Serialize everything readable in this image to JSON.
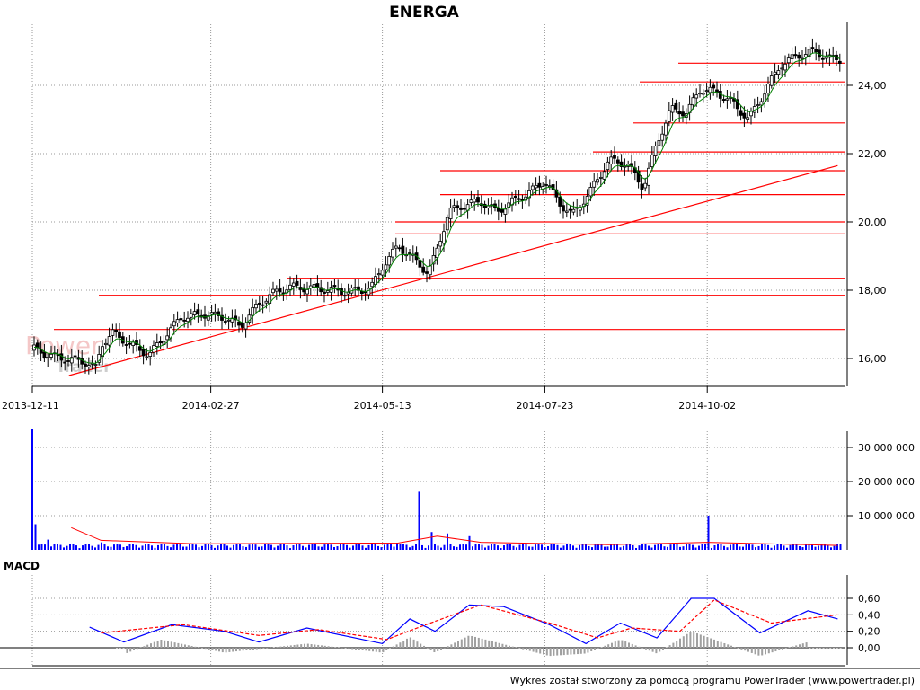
{
  "title": "ENERGA",
  "watermark": {
    "line1": "Power",
    "line2": "Trader"
  },
  "footer": "Wykres został stworzony za pomocą programu PowerTrader (www.powertrader.pl)",
  "colors": {
    "background": "#ffffff",
    "up_candle": "#ffffff",
    "down_candle": "#000000",
    "support_lines": "#ff0000",
    "moving_average": "#008000",
    "volume_bars": "#0000ff",
    "macd_line": "#0000ff",
    "signal_line": "#ff0000",
    "histogram": "#a0a0a0"
  },
  "chart_data": [
    {
      "type": "candlestick",
      "title": "ENERGA",
      "x_tick_labels": [
        "2013-12-11",
        "2014-02-27",
        "2014-05-13",
        "2014-07-23",
        "2014-10-02"
      ],
      "y_tick_labels": [
        "16,00",
        "18,00",
        "20,00",
        "22,00",
        "24,00"
      ],
      "y_ticks": [
        16,
        18,
        20,
        22,
        24
      ],
      "ylim": [
        15.2,
        25.4
      ],
      "grid": true,
      "close_series": [
        [
          "2013-12-11",
          16.3
        ],
        [
          "2013-12-20",
          16.05
        ],
        [
          "2014-01-03",
          15.9
        ],
        [
          "2014-01-08",
          15.7
        ],
        [
          "2014-01-10",
          16.4
        ],
        [
          "2014-01-15",
          16.75
        ],
        [
          "2014-01-22",
          16.45
        ],
        [
          "2014-01-31",
          16.1
        ],
        [
          "2014-02-05",
          16.5
        ],
        [
          "2014-02-14",
          17.2
        ],
        [
          "2014-02-24",
          17.3
        ],
        [
          "2014-03-05",
          17.2
        ],
        [
          "2014-03-12",
          16.95
        ],
        [
          "2014-03-20",
          17.6
        ],
        [
          "2014-03-26",
          17.9
        ],
        [
          "2014-04-02",
          18.1
        ],
        [
          "2014-04-14",
          18.05
        ],
        [
          "2014-04-28",
          17.95
        ],
        [
          "2014-05-08",
          18.05
        ],
        [
          "2014-05-13",
          18.7
        ],
        [
          "2014-05-20",
          19.3
        ],
        [
          "2014-05-27",
          18.9
        ],
        [
          "2014-06-02",
          18.5
        ],
        [
          "2014-06-05",
          19.0
        ],
        [
          "2014-06-11",
          20.3
        ],
        [
          "2014-06-18",
          20.5
        ],
        [
          "2014-06-25",
          20.6
        ],
        [
          "2014-07-02",
          20.3
        ],
        [
          "2014-07-09",
          20.6
        ],
        [
          "2014-07-16",
          20.85
        ],
        [
          "2014-07-23",
          21.2
        ],
        [
          "2014-07-30",
          20.5
        ],
        [
          "2014-08-04",
          20.2
        ],
        [
          "2014-08-11",
          20.8
        ],
        [
          "2014-08-20",
          21.8
        ],
        [
          "2014-08-28",
          21.7
        ],
        [
          "2014-09-04",
          21.0
        ],
        [
          "2014-09-10",
          22.3
        ],
        [
          "2014-09-16",
          23.3
        ],
        [
          "2014-09-23",
          23.2
        ],
        [
          "2014-09-29",
          23.9
        ],
        [
          "2014-10-06",
          23.8
        ],
        [
          "2014-10-13",
          23.5
        ],
        [
          "2014-10-20",
          23.0
        ],
        [
          "2014-10-27",
          23.8
        ],
        [
          "2014-11-03",
          24.6
        ],
        [
          "2014-11-10",
          24.85
        ],
        [
          "2014-11-17",
          25.0
        ],
        [
          "2014-11-26",
          24.75
        ]
      ],
      "support_resistance_levels": [
        16.85,
        17.85,
        18.35,
        19.65,
        20.0,
        20.8,
        21.5,
        22.05,
        22.9,
        24.1,
        24.65
      ],
      "trend_line": {
        "from": [
          "2013-12-27",
          15.5
        ],
        "to": [
          "2014-11-28",
          21.65
        ]
      }
    },
    {
      "type": "bar",
      "title": "Volume",
      "y_tick_labels": [
        "10 000 000",
        "20 000 000",
        "30 000 000"
      ],
      "y_ticks": [
        10000000,
        20000000,
        30000000
      ],
      "ylim": [
        0,
        38000000
      ],
      "values": [
        [
          "2013-12-11",
          35500000
        ],
        [
          "2013-12-12",
          7500000
        ],
        [
          "2013-12-18",
          3000000
        ],
        [
          "2014-01-10",
          2200000
        ],
        [
          "2014-02-20",
          1500000
        ],
        [
          "2014-05-20",
          2000000
        ],
        [
          "2014-05-29",
          17000000
        ],
        [
          "2014-06-04",
          5200000
        ],
        [
          "2014-06-10",
          4800000
        ],
        [
          "2014-06-20",
          4000000
        ],
        [
          "2014-09-19",
          1800000
        ],
        [
          "2014-10-02",
          10000000
        ],
        [
          "2014-11-20",
          1200000
        ]
      ],
      "average_line": [
        [
          "2013-12-28",
          6500000
        ],
        [
          "2014-01-10",
          2800000
        ],
        [
          "2014-02-20",
          1800000
        ],
        [
          "2014-05-20",
          2000000
        ],
        [
          "2014-06-06",
          4000000
        ],
        [
          "2014-06-25",
          2200000
        ],
        [
          "2014-08-20",
          1500000
        ],
        [
          "2014-10-02",
          2200000
        ],
        [
          "2014-11-28",
          1300000
        ]
      ]
    },
    {
      "type": "line",
      "title": "MACD",
      "y_tick_labels": [
        "0,00",
        "0,20",
        "0,40",
        "0,60"
      ],
      "y_ticks": [
        0,
        0.2,
        0.4,
        0.6
      ],
      "ylim": [
        -0.1,
        0.7
      ],
      "series": [
        {
          "name": "macd",
          "values": [
            [
              "2014-01-05",
              0.25
            ],
            [
              "2014-01-20",
              0.07
            ],
            [
              "2014-02-10",
              0.28
            ],
            [
              "2014-03-05",
              0.2
            ],
            [
              "2014-03-20",
              0.07
            ],
            [
              "2014-04-10",
              0.24
            ],
            [
              "2014-05-13",
              0.05
            ],
            [
              "2014-05-25",
              0.35
            ],
            [
              "2014-06-05",
              0.2
            ],
            [
              "2014-06-20",
              0.52
            ],
            [
              "2014-07-05",
              0.5
            ],
            [
              "2014-07-25",
              0.28
            ],
            [
              "2014-08-10",
              0.05
            ],
            [
              "2014-08-25",
              0.3
            ],
            [
              "2014-09-10",
              0.12
            ],
            [
              "2014-09-25",
              0.6
            ],
            [
              "2014-10-05",
              0.6
            ],
            [
              "2014-10-25",
              0.18
            ],
            [
              "2014-11-15",
              0.45
            ],
            [
              "2014-11-28",
              0.35
            ]
          ]
        },
        {
          "name": "signal",
          "values": [
            [
              "2014-01-10",
              0.18
            ],
            [
              "2014-02-15",
              0.28
            ],
            [
              "2014-03-20",
              0.15
            ],
            [
              "2014-04-15",
              0.22
            ],
            [
              "2014-05-15",
              0.1
            ],
            [
              "2014-06-01",
              0.28
            ],
            [
              "2014-06-25",
              0.52
            ],
            [
              "2014-07-25",
              0.3
            ],
            [
              "2014-08-15",
              0.12
            ],
            [
              "2014-08-30",
              0.24
            ],
            [
              "2014-09-20",
              0.2
            ],
            [
              "2014-10-05",
              0.58
            ],
            [
              "2014-10-30",
              0.3
            ],
            [
              "2014-11-28",
              0.4
            ]
          ]
        },
        {
          "name": "histogram",
          "values": [
            [
              "2014-01-20",
              -0.08
            ],
            [
              "2014-02-05",
              0.1
            ],
            [
              "2014-03-05",
              -0.06
            ],
            [
              "2014-04-10",
              0.05
            ],
            [
              "2014-05-13",
              -0.06
            ],
            [
              "2014-05-25",
              0.13
            ],
            [
              "2014-06-05",
              -0.06
            ],
            [
              "2014-06-20",
              0.15
            ],
            [
              "2014-07-25",
              -0.1
            ],
            [
              "2014-08-10",
              -0.07
            ],
            [
              "2014-08-25",
              0.1
            ],
            [
              "2014-09-10",
              -0.07
            ],
            [
              "2014-09-25",
              0.2
            ],
            [
              "2014-10-25",
              -0.1
            ],
            [
              "2014-11-15",
              0.07
            ]
          ]
        }
      ]
    }
  ]
}
